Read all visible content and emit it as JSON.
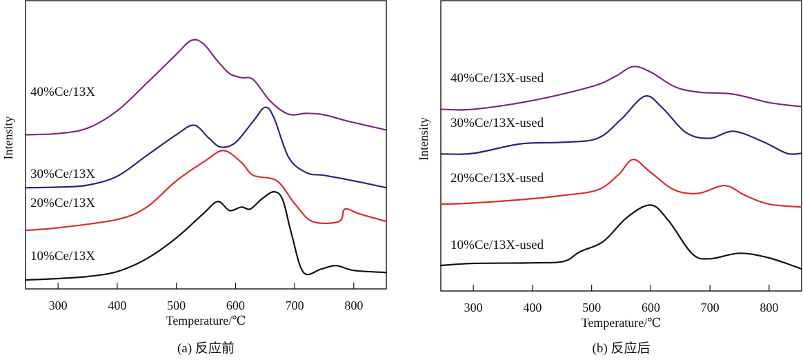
{
  "chart_data": [
    {
      "type": "line",
      "panel": "a",
      "caption": "(a) 反应前",
      "xlabel": "Temperature/℃",
      "ylabel": "Intensity",
      "xlim": [
        245,
        855
      ],
      "ylim": [
        0,
        100
      ],
      "xticks": [
        300,
        400,
        500,
        600,
        700,
        800
      ],
      "yticks": [],
      "grid": false,
      "legend": "inline labels at left",
      "series": [
        {
          "name": "40%Ce/13X",
          "color": "#7b2a7e",
          "label_intensity": 67,
          "x": [
            245,
            300,
            350,
            400,
            450,
            500,
            525,
            545,
            570,
            590,
            610,
            630,
            660,
            690,
            720,
            750,
            790,
            830,
            855
          ],
          "y": [
            53.5,
            53.9,
            55.8,
            61.8,
            71.4,
            81.4,
            86.2,
            85.2,
            79.0,
            74.7,
            73.3,
            72.6,
            64.9,
            60.6,
            60.9,
            60.4,
            58.2,
            56.3,
            55.1
          ]
        },
        {
          "name": "30%Ce/13X",
          "color": "#2e2378",
          "label_intensity": 38.5,
          "x": [
            245,
            300,
            350,
            400,
            450,
            500,
            530,
            555,
            575,
            600,
            630,
            650,
            665,
            690,
            720,
            750,
            800,
            855
          ],
          "y": [
            35.1,
            35.3,
            36.0,
            39.1,
            46.3,
            53.5,
            56.8,
            52.3,
            49.2,
            50.8,
            58.2,
            63.0,
            59.4,
            45.6,
            40.3,
            39.4,
            37.5,
            35.1
          ]
        },
        {
          "name": "20%Ce/13X",
          "color": "#e02a2a",
          "label_intensity": 28.5,
          "x": [
            245,
            300,
            400,
            450,
            500,
            550,
            580,
            610,
            630,
            670,
            700,
            730,
            775,
            785,
            810,
            855
          ],
          "y": [
            20.3,
            21.2,
            24.1,
            28.4,
            37.5,
            44.6,
            48.0,
            43.9,
            39.4,
            37.5,
            29.6,
            23.4,
            23.4,
            27.7,
            26.0,
            23.4
          ]
        },
        {
          "name": "10%Ce/13X",
          "color": "#111111",
          "label_intensity": 10,
          "x": [
            245,
            300,
            350,
            400,
            450,
            500,
            545,
            570,
            590,
            610,
            625,
            645,
            665,
            680,
            695,
            715,
            745,
            770,
            800,
            855
          ],
          "y": [
            3.1,
            3.6,
            4.3,
            6.0,
            10.5,
            17.7,
            26.0,
            30.3,
            27.2,
            28.4,
            27.7,
            31.3,
            33.7,
            30.8,
            18.9,
            5.7,
            6.9,
            8.1,
            6.4,
            5.7
          ]
        }
      ]
    },
    {
      "type": "line",
      "panel": "b",
      "caption": "(b) 反应后",
      "xlabel": "Temperature/℃",
      "ylabel": "Intensity",
      "xlim": [
        245,
        855
      ],
      "ylim": [
        0,
        100
      ],
      "xticks": [
        300,
        400,
        500,
        600,
        700,
        800
      ],
      "yticks": [],
      "grid": false,
      "legend": "inline labels at left",
      "series": [
        {
          "name": "40%Ce/13X-used",
          "color": "#7b2a7e",
          "label_intensity": 72,
          "x": [
            245,
            300,
            400,
            500,
            540,
            570,
            600,
            640,
            680,
            740,
            800,
            855
          ],
          "y": [
            62.6,
            62.6,
            65.6,
            70.4,
            73.9,
            77.3,
            75.4,
            70.4,
            68.5,
            67.8,
            64.9,
            63.5
          ]
        },
        {
          "name": "30%Ce/13X-used",
          "color": "#2e2378",
          "label_intensity": 56.5,
          "x": [
            245,
            300,
            380,
            450,
            510,
            550,
            590,
            620,
            660,
            700,
            740,
            790,
            830,
            855
          ],
          "y": [
            47.2,
            47.4,
            50.7,
            51.2,
            52.6,
            59.2,
            67.1,
            63.0,
            54.5,
            52.6,
            55.0,
            51.4,
            47.4,
            47.4
          ]
        },
        {
          "name": "20%Ce/13X-used",
          "color": "#e02a2a",
          "label_intensity": 37.5,
          "x": [
            245,
            300,
            400,
            450,
            510,
            545,
            570,
            600,
            640,
            680,
            725,
            760,
            800,
            855
          ],
          "y": [
            29.9,
            30.3,
            31.8,
            32.9,
            34.8,
            40.0,
            45.3,
            40.8,
            34.8,
            33.6,
            36.3,
            32.9,
            29.9,
            28.9
          ]
        },
        {
          "name": "10%Ce/13X-used",
          "color": "#111111",
          "label_intensity": 14.5,
          "x": [
            245,
            300,
            400,
            453,
            480,
            520,
            560,
            600,
            630,
            670,
            700,
            750,
            800,
            855
          ],
          "y": [
            8.8,
            9.5,
            9.7,
            10.2,
            13.5,
            17.1,
            25.4,
            29.6,
            24.2,
            12.8,
            11.1,
            13.0,
            11.4,
            7.6
          ]
        }
      ]
    }
  ]
}
